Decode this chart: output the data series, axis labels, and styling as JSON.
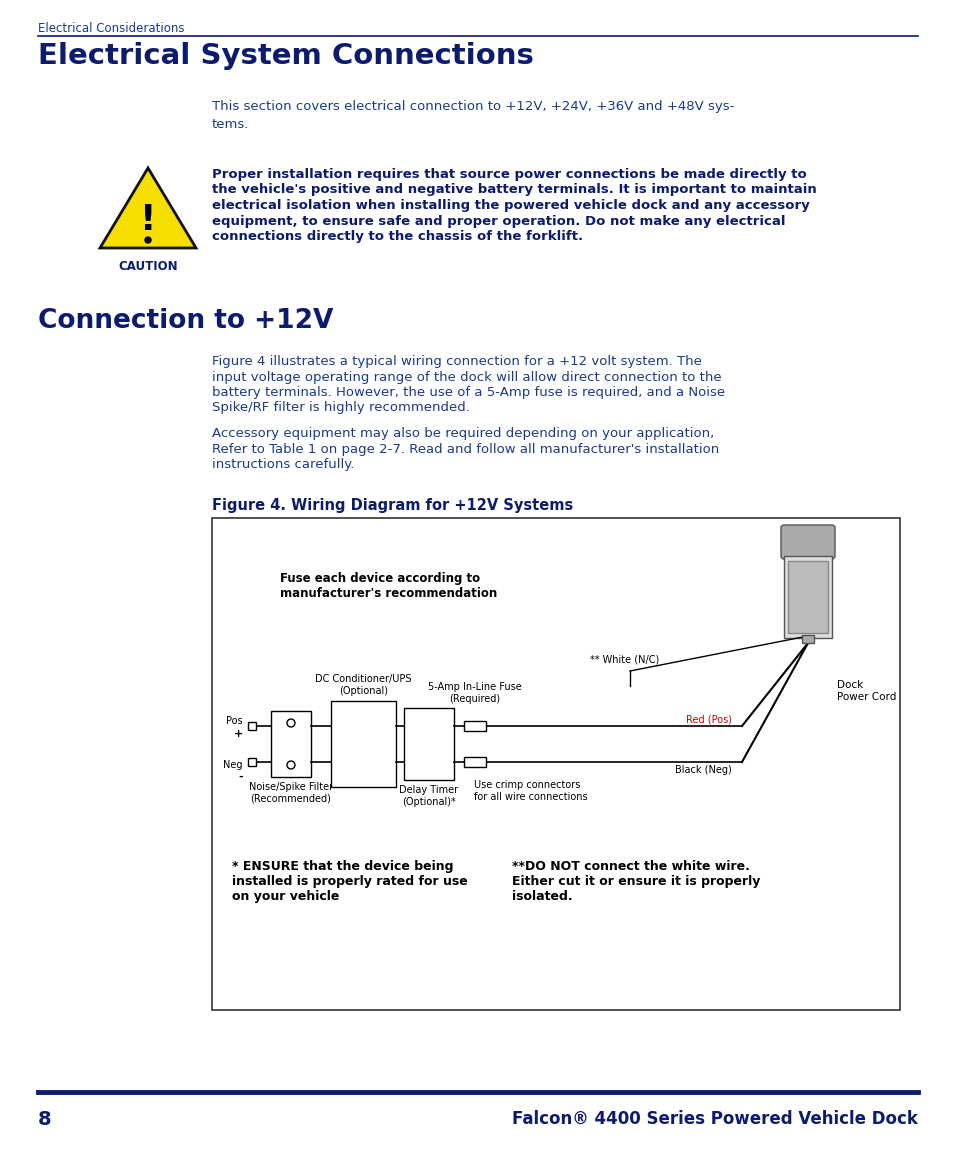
{
  "bg_color": "#ffffff",
  "dark_blue": "#0d1b6e",
  "medium_blue": "#1a3a8a",
  "header_text": "Electrical Considerations",
  "title": "Electrical System Connections",
  "section2_title": "Connection to +12V",
  "figure_caption": "Figure 4. Wiring Diagram for +12V Systems",
  "footer_page": "8",
  "footer_title": "Falcon® 4400 Series Powered Vehicle Dock",
  "intro_line1": "This section covers electrical connection to +12V, +24V, +36V and +48V sys-",
  "intro_line2": "tems.",
  "caution_lines": [
    "Proper installation requires that source power connections be made directly to",
    "the vehicle's positive and negative battery terminals. It is important to maintain",
    "electrical isolation when installing the powered vehicle dock and any accessory",
    "equipment, to ensure safe and proper operation. Do not make any electrical",
    "connections directly to the chassis of the forklift."
  ],
  "para1_lines": [
    "Figure 4 illustrates a typical wiring connection for a +12 volt system. The",
    "input voltage operating range of the dock will allow direct connection to the",
    "battery terminals. However, the use of a 5-Amp fuse is required, and a Noise",
    "Spike/RF filter is highly recommended."
  ],
  "para2_lines": [
    "Accessory equipment may also be required depending on your application,",
    "Refer to Table 1 on page 2-7. Read and follow all manufacturer's installation",
    "instructions carefully."
  ]
}
